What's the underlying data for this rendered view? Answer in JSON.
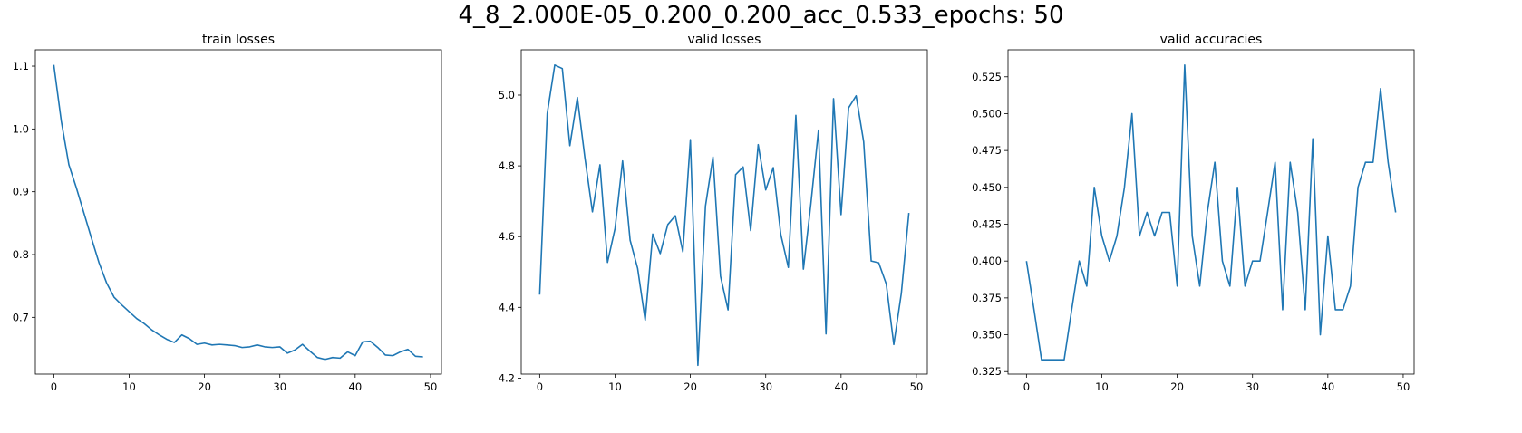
{
  "suptitle": "4_8_2.000E-05_0.200_0.200_acc_0.533_epochs: 50",
  "style": {
    "line_color": "#1f77b4"
  },
  "chart_data": [
    {
      "type": "line",
      "title": "train losses",
      "xlabel": "",
      "ylabel": "",
      "xlim": [
        -2.45,
        51.45
      ],
      "ylim": [
        0.6096,
        1.126
      ],
      "xticks": [
        0,
        10,
        20,
        30,
        40,
        50
      ],
      "yticks": [
        0.7,
        0.8,
        0.9,
        1.0,
        1.1
      ],
      "ytick_labels": [
        "0.7",
        "0.8",
        "0.9",
        "1.0",
        "1.1"
      ],
      "grid": false,
      "x": [
        0,
        1,
        2,
        3,
        4,
        5,
        6,
        7,
        8,
        9,
        10,
        11,
        12,
        13,
        14,
        15,
        16,
        17,
        18,
        19,
        20,
        21,
        22,
        23,
        24,
        25,
        26,
        27,
        28,
        29,
        30,
        31,
        32,
        33,
        34,
        35,
        36,
        37,
        38,
        39,
        40,
        41,
        42,
        43,
        44,
        45,
        46,
        47,
        48,
        49
      ],
      "values": [
        1.102,
        1.012,
        0.943,
        0.906,
        0.866,
        0.826,
        0.787,
        0.755,
        0.732,
        0.72,
        0.709,
        0.698,
        0.69,
        0.68,
        0.672,
        0.665,
        0.66,
        0.672,
        0.666,
        0.657,
        0.659,
        0.656,
        0.657,
        0.656,
        0.655,
        0.652,
        0.653,
        0.656,
        0.653,
        0.652,
        0.653,
        0.643,
        0.648,
        0.657,
        0.646,
        0.636,
        0.633,
        0.636,
        0.635,
        0.645,
        0.639,
        0.661,
        0.662,
        0.652,
        0.64,
        0.639,
        0.645,
        0.649,
        0.638,
        0.637
      ]
    },
    {
      "type": "line",
      "title": "valid losses",
      "xlabel": "",
      "ylabel": "",
      "xlim": [
        -2.45,
        51.45
      ],
      "ylim": [
        4.2113,
        5.128
      ],
      "xticks": [
        0,
        10,
        20,
        30,
        40,
        50
      ],
      "yticks": [
        4.2,
        4.4,
        4.6,
        4.8,
        5.0
      ],
      "ytick_labels": [
        "4.2",
        "4.4",
        "4.6",
        "4.8",
        "5.0"
      ],
      "grid": false,
      "x": [
        0,
        1,
        2,
        3,
        4,
        5,
        6,
        7,
        8,
        9,
        10,
        11,
        12,
        13,
        14,
        15,
        16,
        17,
        18,
        19,
        20,
        21,
        22,
        23,
        24,
        25,
        26,
        27,
        28,
        29,
        30,
        31,
        32,
        33,
        34,
        35,
        36,
        37,
        38,
        39,
        40,
        41,
        42,
        43,
        44,
        45,
        46,
        47,
        48,
        49
      ],
      "values": [
        4.436,
        4.948,
        5.085,
        5.075,
        4.857,
        4.993,
        4.823,
        4.67,
        4.803,
        4.527,
        4.623,
        4.814,
        4.59,
        4.51,
        4.364,
        4.607,
        4.552,
        4.634,
        4.659,
        4.557,
        4.874,
        4.236,
        4.686,
        4.825,
        4.488,
        4.393,
        4.775,
        4.797,
        4.617,
        4.86,
        4.732,
        4.795,
        4.606,
        4.513,
        4.943,
        4.508,
        4.694,
        4.901,
        4.325,
        4.99,
        4.662,
        4.964,
        4.998,
        4.868,
        4.531,
        4.526,
        4.466,
        4.295,
        4.44,
        4.667
      ]
    },
    {
      "type": "line",
      "title": "valid accuracies",
      "xlabel": "",
      "ylabel": "",
      "xlim": [
        -2.45,
        51.45
      ],
      "ylim": [
        0.3233,
        0.5433
      ],
      "xticks": [
        0,
        10,
        20,
        30,
        40,
        50
      ],
      "yticks": [
        0.325,
        0.35,
        0.375,
        0.4,
        0.425,
        0.45,
        0.475,
        0.5,
        0.525
      ],
      "ytick_labels": [
        "0.325",
        "0.350",
        "0.375",
        "0.400",
        "0.425",
        "0.450",
        "0.475",
        "0.500",
        "0.525"
      ],
      "grid": false,
      "x": [
        0,
        1,
        2,
        3,
        4,
        5,
        6,
        7,
        8,
        9,
        10,
        11,
        12,
        13,
        14,
        15,
        16,
        17,
        18,
        19,
        20,
        21,
        22,
        23,
        24,
        25,
        26,
        27,
        28,
        29,
        30,
        31,
        32,
        33,
        34,
        35,
        36,
        37,
        38,
        39,
        40,
        41,
        42,
        43,
        44,
        45,
        46,
        47,
        48,
        49
      ],
      "values": [
        0.4,
        0.367,
        0.333,
        0.333,
        0.333,
        0.333,
        0.367,
        0.4,
        0.383,
        0.45,
        0.417,
        0.4,
        0.417,
        0.45,
        0.5,
        0.417,
        0.433,
        0.417,
        0.433,
        0.433,
        0.383,
        0.533,
        0.417,
        0.383,
        0.433,
        0.467,
        0.4,
        0.383,
        0.45,
        0.383,
        0.4,
        0.4,
        0.433,
        0.467,
        0.367,
        0.467,
        0.433,
        0.367,
        0.483,
        0.35,
        0.417,
        0.367,
        0.367,
        0.383,
        0.45,
        0.467,
        0.467,
        0.517,
        0.467,
        0.433
      ]
    }
  ]
}
